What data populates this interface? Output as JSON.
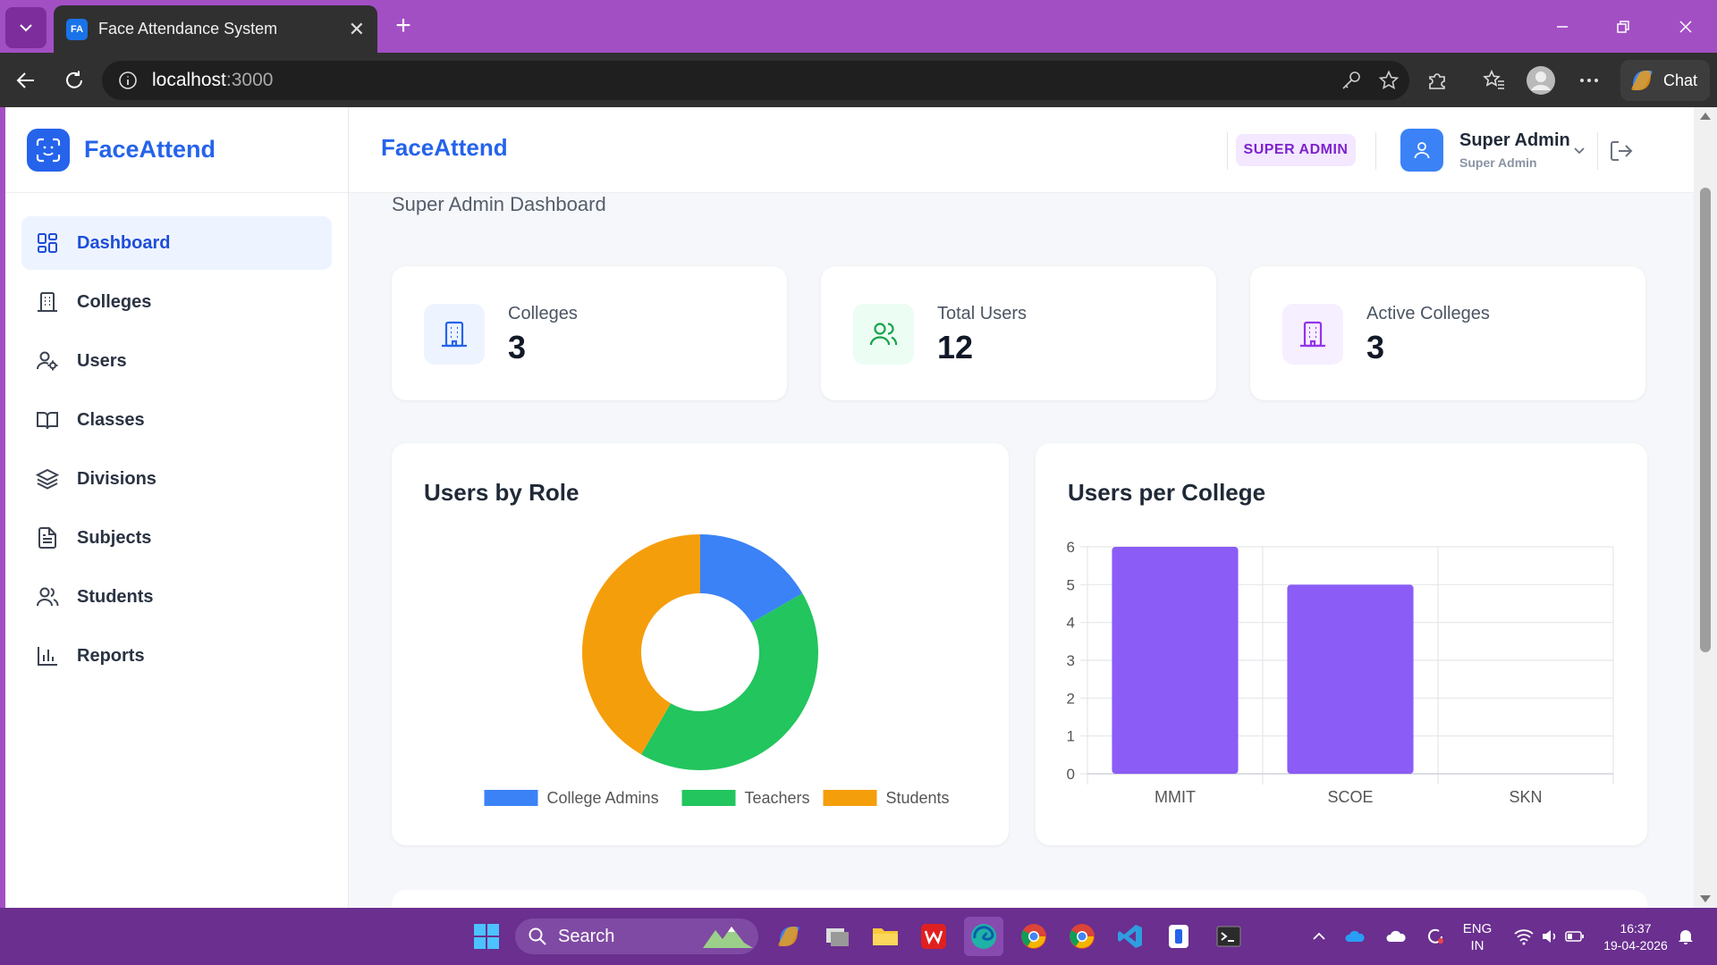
{
  "browser": {
    "tab_favicon": "FA",
    "tab_title": "Face Attendance System",
    "url_host": "localhost",
    "url_port": ":3000",
    "chat_label": "Chat"
  },
  "sidebar": {
    "brand": "FaceAttend",
    "items": [
      {
        "label": "Dashboard",
        "icon": "dashboard-icon"
      },
      {
        "label": "Colleges",
        "icon": "building-icon"
      },
      {
        "label": "Users",
        "icon": "user-cog-icon"
      },
      {
        "label": "Classes",
        "icon": "book-icon"
      },
      {
        "label": "Divisions",
        "icon": "layers-icon"
      },
      {
        "label": "Subjects",
        "icon": "file-text-icon"
      },
      {
        "label": "Students",
        "icon": "users-icon"
      },
      {
        "label": "Reports",
        "icon": "bar-chart-icon"
      }
    ]
  },
  "header": {
    "title": "FaceAttend",
    "role_badge": "SUPER ADMIN",
    "user_name": "Super Admin",
    "user_role": "Super Admin"
  },
  "main": {
    "subtitle": "Super Admin Dashboard",
    "stats": [
      {
        "label": "Colleges",
        "value": "3",
        "color": "#2563eb",
        "bg": "#eef4ff"
      },
      {
        "label": "Total Users",
        "value": "12",
        "color": "#16a34a",
        "bg": "#ecfdf3"
      },
      {
        "label": "Active Colleges",
        "value": "3",
        "color": "#9333ea",
        "bg": "#f6efff"
      }
    ]
  },
  "chart_data": [
    {
      "type": "pie",
      "title": "Users by Role",
      "labels": [
        "College Admins",
        "Teachers",
        "Students"
      ],
      "values": [
        2,
        5,
        5
      ],
      "colors": [
        "#3b82f6",
        "#22c55e",
        "#f59e0b"
      ],
      "donut": true,
      "legend": "bottom"
    },
    {
      "type": "bar",
      "title": "Users per College",
      "categories": [
        "MMIT",
        "SCOE",
        "SKN"
      ],
      "values": [
        6,
        5,
        0
      ],
      "ylim": [
        0,
        6
      ],
      "yticks": [
        "0",
        "1",
        "2",
        "3",
        "4",
        "5",
        "6"
      ],
      "color": "#8b5cf6",
      "grid": true
    }
  ],
  "taskbar": {
    "search_label": "Search",
    "lang_1": "ENG",
    "lang_2": "IN",
    "time": "16:37",
    "date": "19-04-2026"
  }
}
